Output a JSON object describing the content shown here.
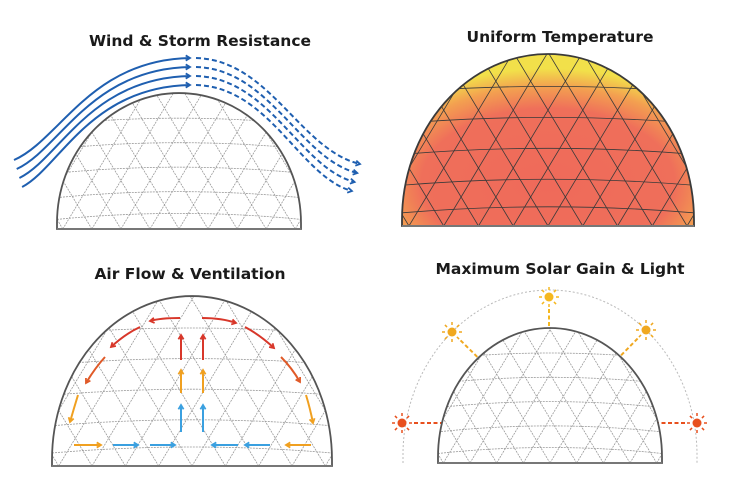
{
  "panels": [
    {
      "title": "Wind & Storm Resistance",
      "concept": "wind-deflection"
    },
    {
      "title": "Uniform Temperature",
      "concept": "heat-distribution"
    },
    {
      "title": "Air Flow & Ventilation",
      "concept": "convection-airflow"
    },
    {
      "title": "Maximum Solar Gain & Light",
      "concept": "solar-exposure"
    }
  ],
  "colors": {
    "wind": "#1f5fb0",
    "hot_air": "#d8372a",
    "warm_air": "#f0a020",
    "cool_air": "#3aa0e0",
    "sun_high": "#f5b820",
    "sun_low": "#e8501e",
    "heat_core": "#ef6a5a",
    "heat_edge": "#f2e04a",
    "frame": "#555555"
  }
}
